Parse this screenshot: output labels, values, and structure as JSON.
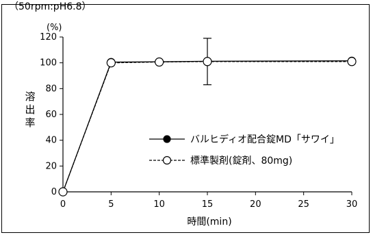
{
  "top_text": "（50rpm:pH6.8）",
  "chart_data": {
    "type": "line",
    "title": "",
    "xlabel": "時間(min)",
    "ylabel": "溶出率",
    "yunit": "(%)",
    "xlim": [
      0,
      30
    ],
    "ylim": [
      0,
      120
    ],
    "xticks": [
      0,
      5,
      10,
      15,
      20,
      25,
      30
    ],
    "yticks": [
      0,
      20,
      40,
      60,
      80,
      100,
      120
    ],
    "x": [
      0,
      5,
      10,
      15,
      30
    ],
    "series": [
      {
        "name": "バルヒディオ配合錠MD「サワイ」",
        "marker": "filled-circle",
        "line": "solid",
        "color": "#000000",
        "values": [
          0,
          100.5,
          100.8,
          101.2,
          101.5
        ]
      },
      {
        "name": "標準製剤(錠剤、80mg)",
        "marker": "open-circle",
        "line": "dashed",
        "color": "#000000",
        "values": [
          0,
          100.0,
          100.6,
          101.0,
          101.0
        ],
        "error_bars": [
          0,
          0,
          0,
          18,
          0
        ]
      }
    ],
    "legend": "inside right"
  }
}
